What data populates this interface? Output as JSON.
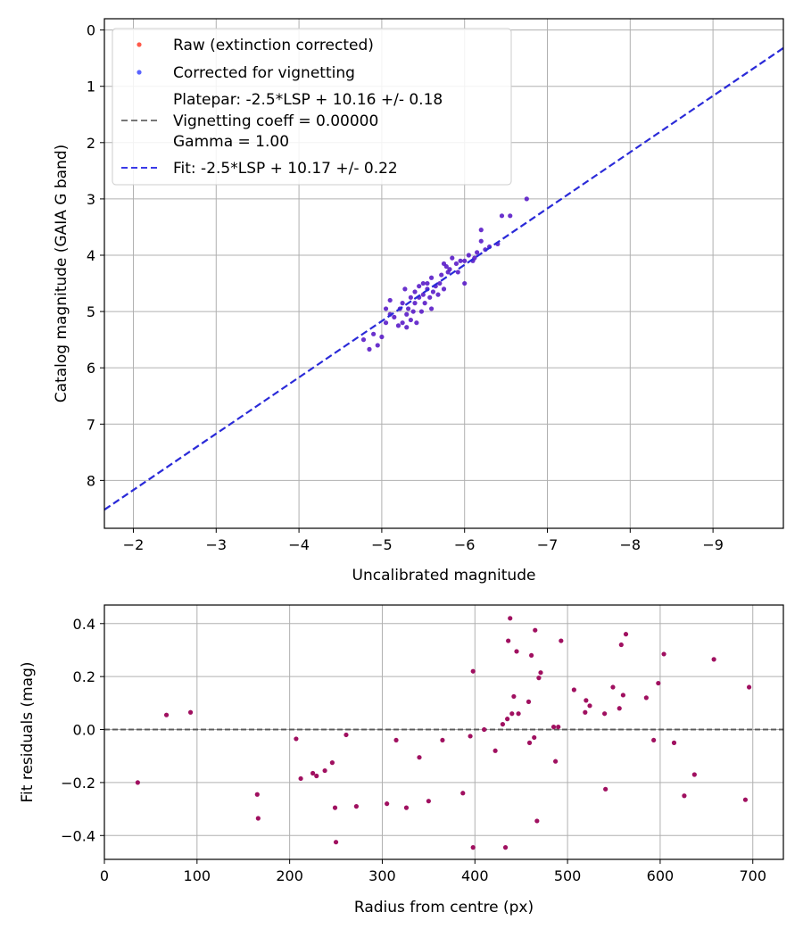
{
  "chart_data": [
    {
      "type": "scatter",
      "xlabel": "Uncalibrated magnitude",
      "ylabel": "Catalog magnitude (GAIA G band)",
      "xlim": [
        -1.65,
        -9.85
      ],
      "ylim": [
        8.85,
        -0.2
      ],
      "xticks": [
        "−2",
        "−3",
        "−4",
        "−5",
        "−6",
        "−7",
        "−8",
        "−9"
      ],
      "xtick_values": [
        -2,
        -3,
        -4,
        -5,
        -6,
        -7,
        -8,
        -9
      ],
      "yticks": [
        "0",
        "1",
        "2",
        "3",
        "4",
        "5",
        "6",
        "7",
        "8"
      ],
      "ytick_values": [
        0,
        1,
        2,
        3,
        4,
        5,
        6,
        7,
        8
      ],
      "grid": true,
      "legend_position": "top-left",
      "legend": [
        {
          "label": "Raw (extinction corrected)",
          "kind": "marker",
          "color": "#ff5a4a"
        },
        {
          "label": "Corrected for vignetting",
          "kind": "marker",
          "color": "#5a64ff"
        },
        {
          "label": "Platepar: -2.5*LSP + 10.16 +/- 0.18",
          "kind": "line",
          "color": "#777777"
        },
        {
          "label": "Vignetting coeff = 0.00000",
          "kind": "text"
        },
        {
          "label": "Gamma = 1.00",
          "kind": "text"
        },
        {
          "label": "Fit: -2.5*LSP + 10.17 +/- 0.22",
          "kind": "line",
          "color": "#3a3ae8"
        }
      ],
      "fit_line": {
        "slope": 1.0,
        "intercept": 10.17,
        "color": "#2a2ad8"
      },
      "platepar_line": {
        "slope": 1.0,
        "intercept": 10.16,
        "color": "#777777"
      },
      "point_color": "#5a1cc8",
      "points": [
        [
          -4.78,
          5.5
        ],
        [
          -4.85,
          5.67
        ],
        [
          -4.9,
          5.4
        ],
        [
          -4.95,
          5.6
        ],
        [
          -5.0,
          5.45
        ],
        [
          -5.05,
          5.2
        ],
        [
          -5.05,
          4.95
        ],
        [
          -5.1,
          4.8
        ],
        [
          -5.1,
          5.05
        ],
        [
          -5.15,
          5.1
        ],
        [
          -5.2,
          5.25
        ],
        [
          -5.22,
          4.95
        ],
        [
          -5.25,
          4.85
        ],
        [
          -5.25,
          5.2
        ],
        [
          -5.28,
          4.6
        ],
        [
          -5.3,
          5.05
        ],
        [
          -5.3,
          5.28
        ],
        [
          -5.32,
          4.95
        ],
        [
          -5.35,
          5.15
        ],
        [
          -5.35,
          4.75
        ],
        [
          -5.38,
          5.0
        ],
        [
          -5.4,
          4.65
        ],
        [
          -5.4,
          4.85
        ],
        [
          -5.42,
          5.2
        ],
        [
          -5.45,
          4.55
        ],
        [
          -5.45,
          4.75
        ],
        [
          -5.48,
          5.0
        ],
        [
          -5.5,
          4.5
        ],
        [
          -5.5,
          4.7
        ],
        [
          -5.52,
          4.85
        ],
        [
          -5.55,
          4.6
        ],
        [
          -5.55,
          4.5
        ],
        [
          -5.58,
          4.75
        ],
        [
          -5.6,
          4.4
        ],
        [
          -5.6,
          4.95
        ],
        [
          -5.62,
          4.65
        ],
        [
          -5.65,
          4.55
        ],
        [
          -5.68,
          4.7
        ],
        [
          -5.7,
          4.5
        ],
        [
          -5.72,
          4.35
        ],
        [
          -5.75,
          4.15
        ],
        [
          -5.75,
          4.6
        ],
        [
          -5.78,
          4.2
        ],
        [
          -5.8,
          4.3
        ],
        [
          -5.82,
          4.25
        ],
        [
          -5.85,
          4.05
        ],
        [
          -5.9,
          4.15
        ],
        [
          -5.92,
          4.3
        ],
        [
          -5.95,
          4.1
        ],
        [
          -6.0,
          4.5
        ],
        [
          -6.0,
          4.1
        ],
        [
          -6.05,
          4.0
        ],
        [
          -6.1,
          4.1
        ],
        [
          -6.12,
          4.05
        ],
        [
          -6.15,
          3.95
        ],
        [
          -6.2,
          3.55
        ],
        [
          -6.2,
          3.75
        ],
        [
          -6.25,
          3.9
        ],
        [
          -6.3,
          3.85
        ],
        [
          -6.4,
          3.8
        ],
        [
          -6.45,
          3.3
        ],
        [
          -6.55,
          3.3
        ],
        [
          -6.75,
          3.0
        ]
      ]
    },
    {
      "type": "scatter",
      "xlabel": "Radius from centre (px)",
      "ylabel": "Fit residuals (mag)",
      "xlim": [
        0,
        733
      ],
      "ylim": [
        -0.49,
        0.47
      ],
      "xticks": [
        "0",
        "100",
        "200",
        "300",
        "400",
        "500",
        "600",
        "700"
      ],
      "xtick_values": [
        0,
        100,
        200,
        300,
        400,
        500,
        600,
        700
      ],
      "yticks": [
        "−0.4",
        "−0.2",
        "0.0",
        "0.2",
        "0.4"
      ],
      "ytick_values": [
        -0.4,
        -0.2,
        0.0,
        0.2,
        0.4
      ],
      "grid": true,
      "zero_line": {
        "value": 0.0,
        "color": "#444444"
      },
      "point_color": "#a01060",
      "points": [
        [
          36,
          -0.2
        ],
        [
          67,
          0.055
        ],
        [
          93,
          0.065
        ],
        [
          165,
          -0.245
        ],
        [
          166,
          -0.335
        ],
        [
          207,
          -0.035
        ],
        [
          212,
          -0.185
        ],
        [
          225,
          -0.165
        ],
        [
          229,
          -0.175
        ],
        [
          238,
          -0.155
        ],
        [
          246,
          -0.125
        ],
        [
          249,
          -0.295
        ],
        [
          250,
          -0.425
        ],
        [
          261,
          -0.02
        ],
        [
          272,
          -0.29
        ],
        [
          305,
          -0.28
        ],
        [
          315,
          -0.04
        ],
        [
          326,
          -0.295
        ],
        [
          340,
          -0.105
        ],
        [
          350,
          -0.27
        ],
        [
          365,
          -0.04
        ],
        [
          387,
          -0.24
        ],
        [
          395,
          -0.025
        ],
        [
          398,
          0.22
        ],
        [
          398,
          -0.445
        ],
        [
          410,
          0.0
        ],
        [
          422,
          -0.08
        ],
        [
          430,
          0.02
        ],
        [
          433,
          -0.445
        ],
        [
          435,
          0.04
        ],
        [
          436,
          0.335
        ],
        [
          438,
          0.42
        ],
        [
          440,
          0.06
        ],
        [
          442,
          0.125
        ],
        [
          445,
          0.295
        ],
        [
          447,
          0.06
        ],
        [
          458,
          0.105
        ],
        [
          459,
          -0.05
        ],
        [
          461,
          0.28
        ],
        [
          464,
          -0.03
        ],
        [
          465,
          0.375
        ],
        [
          467,
          -0.345
        ],
        [
          469,
          0.195
        ],
        [
          471,
          0.215
        ],
        [
          485,
          0.01
        ],
        [
          487,
          -0.12
        ],
        [
          490,
          0.01
        ],
        [
          493,
          0.335
        ],
        [
          507,
          0.15
        ],
        [
          519,
          0.065
        ],
        [
          520,
          0.11
        ],
        [
          524,
          0.09
        ],
        [
          540,
          0.06
        ],
        [
          541,
          -0.225
        ],
        [
          549,
          0.16
        ],
        [
          556,
          0.08
        ],
        [
          558,
          0.32
        ],
        [
          560,
          0.13
        ],
        [
          563,
          0.36
        ],
        [
          585,
          0.12
        ],
        [
          593,
          -0.04
        ],
        [
          598,
          0.175
        ],
        [
          604,
          0.285
        ],
        [
          615,
          -0.05
        ],
        [
          626,
          -0.25
        ],
        [
          637,
          -0.17
        ],
        [
          658,
          0.265
        ],
        [
          692,
          -0.265
        ],
        [
          696,
          0.16
        ]
      ]
    }
  ]
}
